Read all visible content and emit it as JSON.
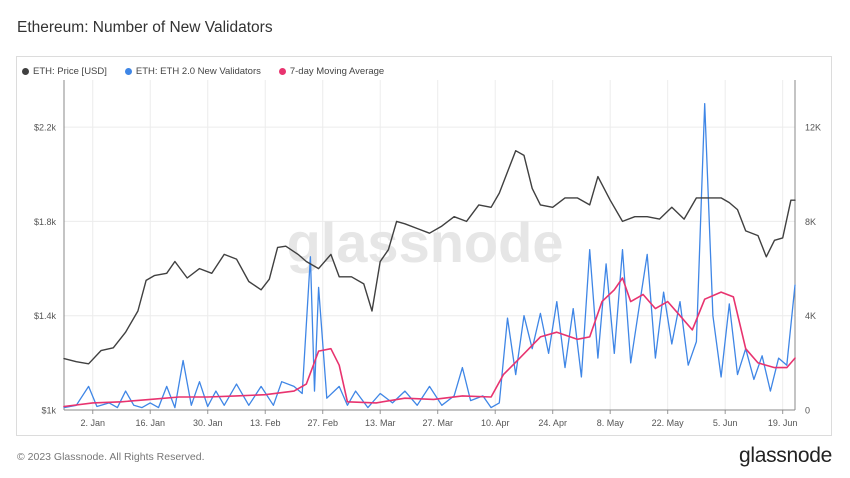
{
  "header": {
    "title": "Ethereum: Number of New Validators"
  },
  "footer": {
    "copyright": "© 2023 Glassnode. All Rights Reserved.",
    "brand": "glassnode"
  },
  "watermark": "glassnode",
  "colors": {
    "price": "#404040",
    "validators": "#3f86e6",
    "moving_average": "#e8336f",
    "grid": "#ececec",
    "axis": "#555555"
  },
  "chart_data": {
    "type": "line",
    "title": "Ethereum: Number of New Validators",
    "legend_position": "top-left",
    "grid": true,
    "x": {
      "start": "2022-12-26",
      "end": "2023-06-22",
      "ticks": [
        "2. Jan",
        "16. Jan",
        "30. Jan",
        "13. Feb",
        "27. Feb",
        "13. Mar",
        "27. Mar",
        "10. Apr",
        "24. Apr",
        "8. May",
        "22. May",
        "5. Jun",
        "19. Jun"
      ]
    },
    "y_left": {
      "ticks": [
        "$1k",
        "$1.4k",
        "$1.8k",
        "$2.2k"
      ],
      "ylim": [
        1000,
        2400
      ]
    },
    "y_right": {
      "ticks": [
        "0",
        "4K",
        "8K",
        "12K"
      ],
      "ylim": [
        0,
        14000
      ]
    },
    "series": [
      {
        "name": "ETH: Price [USD]",
        "axis": "left",
        "points": [
          [
            "2022-12-26",
            1218
          ],
          [
            "2022-12-29",
            1205
          ],
          [
            "2023-01-01",
            1196
          ],
          [
            "2023-01-04",
            1252
          ],
          [
            "2023-01-07",
            1264
          ],
          [
            "2023-01-10",
            1330
          ],
          [
            "2023-01-13",
            1420
          ],
          [
            "2023-01-15",
            1550
          ],
          [
            "2023-01-17",
            1570
          ],
          [
            "2023-01-20",
            1580
          ],
          [
            "2023-01-22",
            1630
          ],
          [
            "2023-01-25",
            1560
          ],
          [
            "2023-01-28",
            1600
          ],
          [
            "2023-01-31",
            1580
          ],
          [
            "2023-02-03",
            1660
          ],
          [
            "2023-02-06",
            1640
          ],
          [
            "2023-02-09",
            1545
          ],
          [
            "2023-02-12",
            1510
          ],
          [
            "2023-02-14",
            1555
          ],
          [
            "2023-02-16",
            1690
          ],
          [
            "2023-02-18",
            1695
          ],
          [
            "2023-02-21",
            1660
          ],
          [
            "2023-02-23",
            1630
          ],
          [
            "2023-02-26",
            1600
          ],
          [
            "2023-03-01",
            1660
          ],
          [
            "2023-03-03",
            1565
          ],
          [
            "2023-03-06",
            1565
          ],
          [
            "2023-03-09",
            1535
          ],
          [
            "2023-03-11",
            1420
          ],
          [
            "2023-03-13",
            1630
          ],
          [
            "2023-03-15",
            1680
          ],
          [
            "2023-03-17",
            1800
          ],
          [
            "2023-03-19",
            1790
          ],
          [
            "2023-03-22",
            1770
          ],
          [
            "2023-03-25",
            1750
          ],
          [
            "2023-03-28",
            1780
          ],
          [
            "2023-03-31",
            1820
          ],
          [
            "2023-04-03",
            1800
          ],
          [
            "2023-04-06",
            1870
          ],
          [
            "2023-04-09",
            1860
          ],
          [
            "2023-04-11",
            1920
          ],
          [
            "2023-04-13",
            2010
          ],
          [
            "2023-04-15",
            2100
          ],
          [
            "2023-04-17",
            2080
          ],
          [
            "2023-04-19",
            1940
          ],
          [
            "2023-04-21",
            1870
          ],
          [
            "2023-04-24",
            1860
          ],
          [
            "2023-04-27",
            1900
          ],
          [
            "2023-04-30",
            1900
          ],
          [
            "2023-05-03",
            1870
          ],
          [
            "2023-05-05",
            1990
          ],
          [
            "2023-05-08",
            1890
          ],
          [
            "2023-05-11",
            1800
          ],
          [
            "2023-05-14",
            1820
          ],
          [
            "2023-05-17",
            1820
          ],
          [
            "2023-05-20",
            1810
          ],
          [
            "2023-05-23",
            1860
          ],
          [
            "2023-05-26",
            1810
          ],
          [
            "2023-05-29",
            1900
          ],
          [
            "2023-06-01",
            1900
          ],
          [
            "2023-06-04",
            1900
          ],
          [
            "2023-06-06",
            1880
          ],
          [
            "2023-06-08",
            1850
          ],
          [
            "2023-06-10",
            1760
          ],
          [
            "2023-06-13",
            1740
          ],
          [
            "2023-06-15",
            1650
          ],
          [
            "2023-06-17",
            1720
          ],
          [
            "2023-06-19",
            1730
          ],
          [
            "2023-06-21",
            1890
          ],
          [
            "2023-06-22",
            1890
          ]
        ]
      },
      {
        "name": "ETH: ETH 2.0 New Validators",
        "axis": "right",
        "points": [
          [
            "2022-12-26",
            100
          ],
          [
            "2022-12-29",
            200
          ],
          [
            "2023-01-01",
            1000
          ],
          [
            "2023-01-03",
            150
          ],
          [
            "2023-01-06",
            300
          ],
          [
            "2023-01-08",
            100
          ],
          [
            "2023-01-10",
            800
          ],
          [
            "2023-01-12",
            200
          ],
          [
            "2023-01-14",
            100
          ],
          [
            "2023-01-16",
            300
          ],
          [
            "2023-01-18",
            100
          ],
          [
            "2023-01-20",
            1000
          ],
          [
            "2023-01-22",
            100
          ],
          [
            "2023-01-24",
            2100
          ],
          [
            "2023-01-26",
            200
          ],
          [
            "2023-01-28",
            1200
          ],
          [
            "2023-01-30",
            150
          ],
          [
            "2023-02-01",
            800
          ],
          [
            "2023-02-03",
            200
          ],
          [
            "2023-02-06",
            1100
          ],
          [
            "2023-02-09",
            200
          ],
          [
            "2023-02-12",
            1000
          ],
          [
            "2023-02-15",
            200
          ],
          [
            "2023-02-17",
            1200
          ],
          [
            "2023-02-20",
            1000
          ],
          [
            "2023-02-22",
            700
          ],
          [
            "2023-02-24",
            6500
          ],
          [
            "2023-02-25",
            800
          ],
          [
            "2023-02-26",
            5200
          ],
          [
            "2023-02-28",
            500
          ],
          [
            "2023-03-03",
            1000
          ],
          [
            "2023-03-05",
            200
          ],
          [
            "2023-03-07",
            800
          ],
          [
            "2023-03-10",
            100
          ],
          [
            "2023-03-13",
            700
          ],
          [
            "2023-03-16",
            300
          ],
          [
            "2023-03-19",
            800
          ],
          [
            "2023-03-22",
            200
          ],
          [
            "2023-03-25",
            1000
          ],
          [
            "2023-03-28",
            200
          ],
          [
            "2023-03-31",
            600
          ],
          [
            "2023-04-02",
            1800
          ],
          [
            "2023-04-04",
            400
          ],
          [
            "2023-04-07",
            600
          ],
          [
            "2023-04-09",
            100
          ],
          [
            "2023-04-11",
            300
          ],
          [
            "2023-04-13",
            3900
          ],
          [
            "2023-04-15",
            1500
          ],
          [
            "2023-04-17",
            4000
          ],
          [
            "2023-04-19",
            2600
          ],
          [
            "2023-04-21",
            4100
          ],
          [
            "2023-04-23",
            2400
          ],
          [
            "2023-04-25",
            4600
          ],
          [
            "2023-04-27",
            1800
          ],
          [
            "2023-04-29",
            4300
          ],
          [
            "2023-05-01",
            1400
          ],
          [
            "2023-05-03",
            6800
          ],
          [
            "2023-05-05",
            2200
          ],
          [
            "2023-05-07",
            6200
          ],
          [
            "2023-05-09",
            2400
          ],
          [
            "2023-05-11",
            6800
          ],
          [
            "2023-05-13",
            2000
          ],
          [
            "2023-05-15",
            4300
          ],
          [
            "2023-05-17",
            6600
          ],
          [
            "2023-05-19",
            2200
          ],
          [
            "2023-05-21",
            5000
          ],
          [
            "2023-05-23",
            2800
          ],
          [
            "2023-05-25",
            4600
          ],
          [
            "2023-05-27",
            1900
          ],
          [
            "2023-05-29",
            2900
          ],
          [
            "2023-05-31",
            13000
          ],
          [
            "2023-06-02",
            4000
          ],
          [
            "2023-06-04",
            1400
          ],
          [
            "2023-06-06",
            4500
          ],
          [
            "2023-06-08",
            1500
          ],
          [
            "2023-06-10",
            2600
          ],
          [
            "2023-06-12",
            1300
          ],
          [
            "2023-06-14",
            2300
          ],
          [
            "2023-06-16",
            800
          ],
          [
            "2023-06-18",
            2200
          ],
          [
            "2023-06-20",
            1900
          ],
          [
            "2023-06-22",
            5300
          ]
        ]
      },
      {
        "name": "7-day Moving Average",
        "axis": "right",
        "points": [
          [
            "2022-12-26",
            150
          ],
          [
            "2023-01-02",
            300
          ],
          [
            "2023-01-09",
            350
          ],
          [
            "2023-01-16",
            450
          ],
          [
            "2023-01-23",
            550
          ],
          [
            "2023-01-30",
            550
          ],
          [
            "2023-02-06",
            600
          ],
          [
            "2023-02-13",
            650
          ],
          [
            "2023-02-20",
            800
          ],
          [
            "2023-02-23",
            1100
          ],
          [
            "2023-02-26",
            2500
          ],
          [
            "2023-03-01",
            2600
          ],
          [
            "2023-03-03",
            1900
          ],
          [
            "2023-03-05",
            350
          ],
          [
            "2023-03-12",
            300
          ],
          [
            "2023-03-19",
            500
          ],
          [
            "2023-03-26",
            450
          ],
          [
            "2023-04-02",
            600
          ],
          [
            "2023-04-09",
            550
          ],
          [
            "2023-04-12",
            1500
          ],
          [
            "2023-04-16",
            2200
          ],
          [
            "2023-04-21",
            3100
          ],
          [
            "2023-04-25",
            3300
          ],
          [
            "2023-04-30",
            3000
          ],
          [
            "2023-05-03",
            3100
          ],
          [
            "2023-05-06",
            4600
          ],
          [
            "2023-05-09",
            5100
          ],
          [
            "2023-05-11",
            5600
          ],
          [
            "2023-05-13",
            4600
          ],
          [
            "2023-05-16",
            4900
          ],
          [
            "2023-05-19",
            4300
          ],
          [
            "2023-05-22",
            4600
          ],
          [
            "2023-05-25",
            4000
          ],
          [
            "2023-05-28",
            3400
          ],
          [
            "2023-05-31",
            4700
          ],
          [
            "2023-06-04",
            5000
          ],
          [
            "2023-06-07",
            4800
          ],
          [
            "2023-06-10",
            2600
          ],
          [
            "2023-06-13",
            2000
          ],
          [
            "2023-06-17",
            1800
          ],
          [
            "2023-06-20",
            1800
          ],
          [
            "2023-06-22",
            2200
          ]
        ]
      }
    ]
  }
}
